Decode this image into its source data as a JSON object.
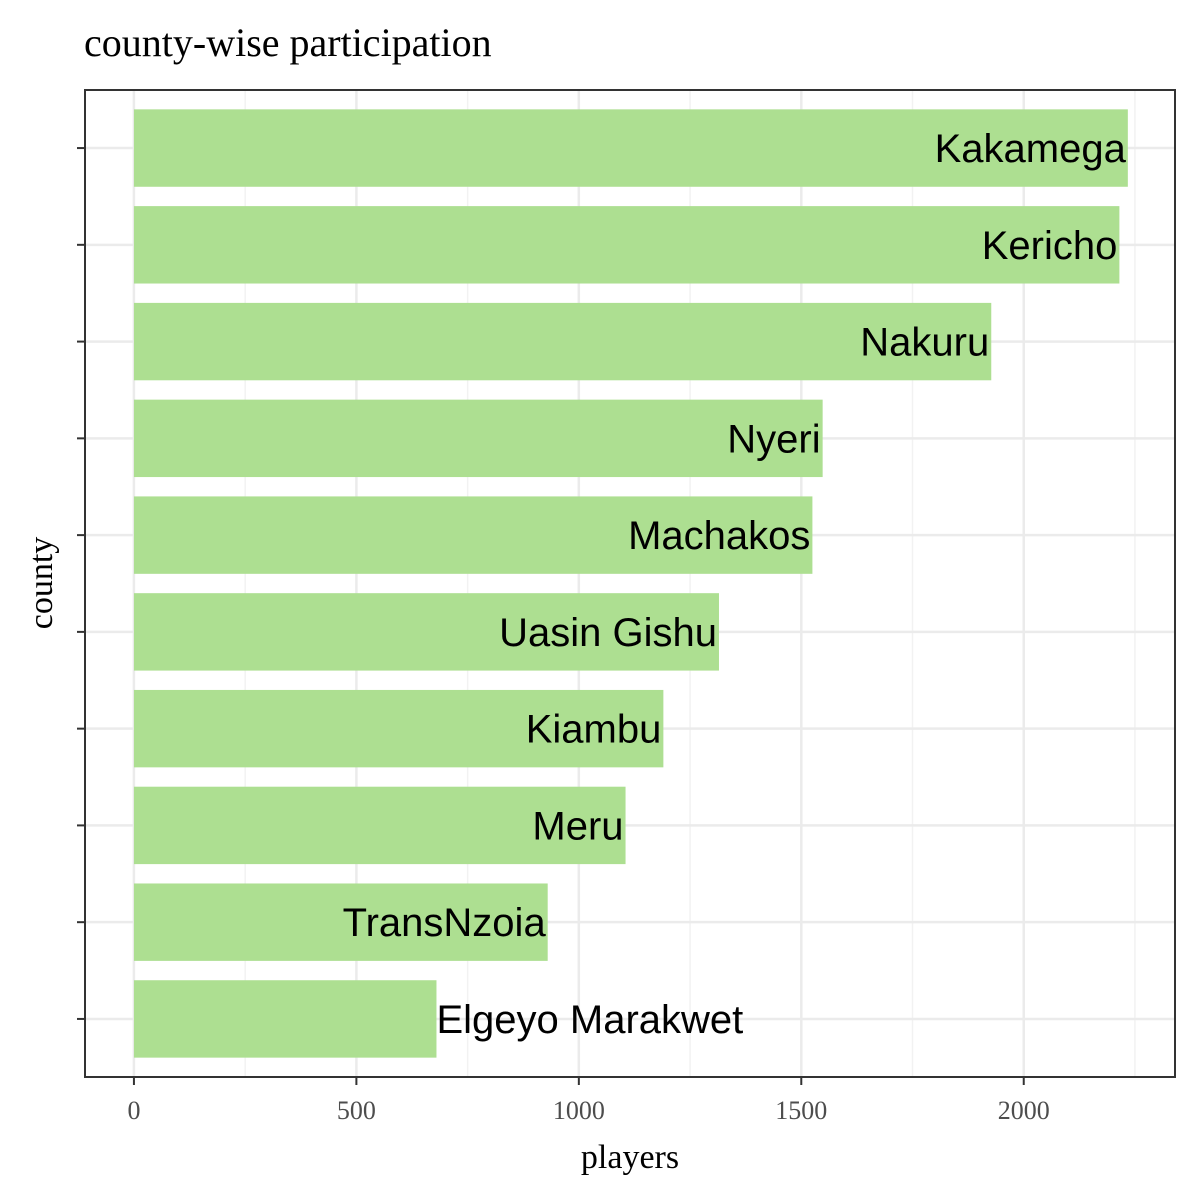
{
  "chart_data": {
    "type": "bar",
    "orientation": "horizontal",
    "title": "county-wise participation",
    "xlabel": "players",
    "ylabel": "county",
    "xlim": [
      -110,
      2340
    ],
    "x_ticks": [
      0,
      500,
      1000,
      1500,
      2000
    ],
    "grid": true,
    "bar_color": "#addf91",
    "categories": [
      "Kakamega",
      "Kericho",
      "Nakuru",
      "Nyeri",
      "Machakos",
      "Uasin Gishu",
      "Kiambu",
      "Meru",
      "TransNzoia",
      "Elgeyo Marakwet"
    ],
    "values": [
      2234,
      2215,
      1927,
      1548,
      1525,
      1315,
      1190,
      1105,
      930,
      680
    ]
  }
}
